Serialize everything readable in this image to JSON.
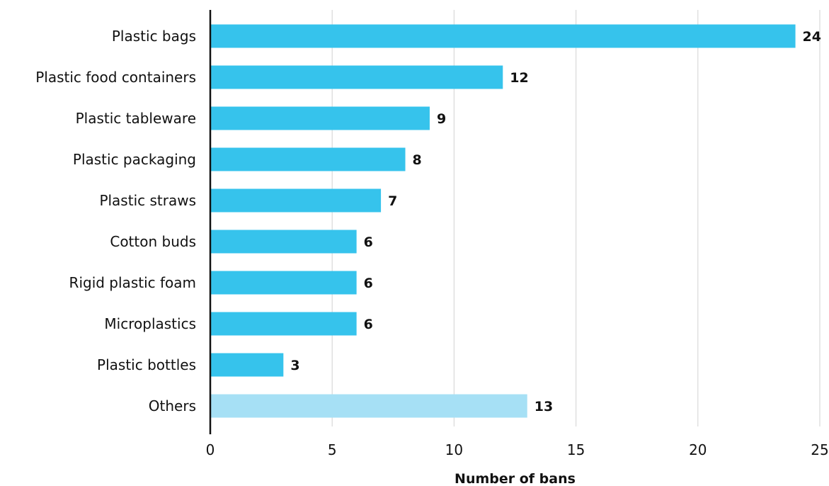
{
  "chart_data": {
    "type": "bar",
    "orientation": "horizontal",
    "categories": [
      "Plastic bags",
      "Plastic food containers",
      "Plastic tableware",
      "Plastic packaging",
      "Plastic straws",
      "Cotton buds",
      "Rigid plastic foam",
      "Microplastics",
      "Plastic bottles",
      "Others"
    ],
    "values": [
      24,
      12,
      9,
      8,
      7,
      6,
      6,
      6,
      3,
      13
    ],
    "data_labels": [
      "24",
      "12",
      "9",
      "8",
      "7",
      "6",
      "6",
      "6",
      "3",
      "13"
    ],
    "xlabel": "Number of bans",
    "ylabel": "",
    "xlim": [
      0,
      25
    ],
    "xticks": [
      0,
      5,
      10,
      15,
      20,
      25
    ],
    "xtick_labels": [
      "0",
      "5",
      "10",
      "15",
      "20",
      "25"
    ],
    "grid": "vertical",
    "legend": "none",
    "colors": {
      "bar": "#36C3EC",
      "bar_others": "#A6E0F5",
      "grid": "#D9D9D9",
      "axis": "#111111"
    }
  }
}
